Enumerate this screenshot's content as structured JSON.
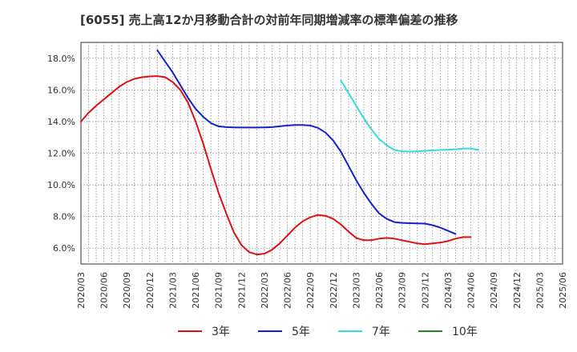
{
  "chart_data": {
    "type": "line",
    "title": "[6055]  売上高12か月移動合計の対前年同期増減率の標準偏差の推移",
    "xlabel": "",
    "ylabel": "",
    "ylim": [
      5.0,
      19.0
    ],
    "yticks": [
      6.0,
      8.0,
      10.0,
      12.0,
      14.0,
      16.0,
      18.0
    ],
    "ytick_labels": [
      "6.0%",
      "8.0%",
      "10.0%",
      "12.0%",
      "14.0%",
      "16.0%",
      "18.0%"
    ],
    "x_labels": [
      "2020/03",
      "2020/06",
      "2020/09",
      "2020/12",
      "2021/03",
      "2021/06",
      "2021/09",
      "2021/12",
      "2022/03",
      "2022/06",
      "2022/09",
      "2022/12",
      "2023/03",
      "2023/06",
      "2023/09",
      "2023/12",
      "2024/03",
      "2024/06",
      "2024/09",
      "2024/12",
      "2025/03",
      "2025/06"
    ],
    "grid": true,
    "legend_position": "bottom",
    "series": [
      {
        "name": "3年",
        "color": "#dd1111",
        "values": [
          14.0,
          14.55,
          15.0,
          15.4,
          15.8,
          16.2,
          16.5,
          16.7,
          16.8,
          16.85,
          16.87,
          16.8,
          16.5,
          16.0,
          15.2,
          14.0,
          12.6,
          11.0,
          9.5,
          8.2,
          7.0,
          6.2,
          5.75,
          5.6,
          5.65,
          5.9,
          6.3,
          6.8,
          7.3,
          7.7,
          7.95,
          8.1,
          8.05,
          7.85,
          7.5,
          7.05,
          6.65,
          6.5,
          6.5,
          6.6,
          6.65,
          6.6,
          6.5,
          6.4,
          6.3,
          6.25,
          6.3,
          6.35,
          6.45,
          6.6,
          6.7,
          6.7
        ]
      },
      {
        "name": "5年",
        "color": "#1122cc",
        "values": [
          null,
          null,
          null,
          null,
          null,
          null,
          null,
          null,
          null,
          null,
          18.5,
          17.8,
          17.1,
          16.3,
          15.5,
          14.8,
          14.3,
          13.9,
          13.7,
          13.65,
          13.63,
          13.62,
          13.62,
          13.62,
          13.63,
          13.65,
          13.7,
          13.75,
          13.78,
          13.78,
          13.75,
          13.6,
          13.3,
          12.8,
          12.1,
          11.2,
          10.3,
          9.5,
          8.8,
          8.2,
          7.85,
          7.65,
          7.6,
          7.58,
          7.57,
          7.55,
          7.45,
          7.3,
          7.1,
          6.9
        ]
      },
      {
        "name": "7年",
        "color": "#33dddd",
        "values": [
          null,
          null,
          null,
          null,
          null,
          null,
          null,
          null,
          null,
          null,
          null,
          null,
          null,
          null,
          null,
          null,
          null,
          null,
          null,
          null,
          null,
          null,
          null,
          null,
          null,
          null,
          null,
          null,
          null,
          null,
          null,
          null,
          null,
          null,
          16.6,
          15.8,
          15.0,
          14.2,
          13.5,
          12.9,
          12.5,
          12.2,
          12.12,
          12.1,
          12.12,
          12.15,
          12.18,
          12.2,
          12.22,
          12.25,
          12.3,
          12.3,
          12.2
        ]
      },
      {
        "name": "10年",
        "color": "#228822",
        "values": []
      }
    ]
  }
}
